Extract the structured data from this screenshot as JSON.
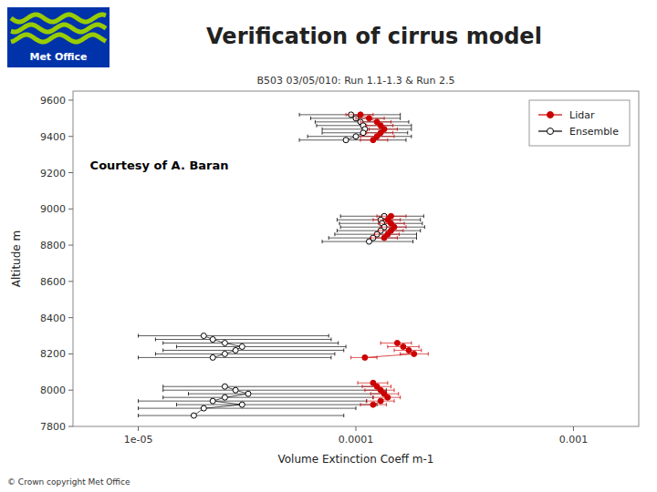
{
  "chart_data": {
    "type": "scatter",
    "title": "Verification of cirrus model",
    "subtitle": "B503 03/05/010: Run 1.1-1.3 & Run 2.5",
    "x_label": "Volume Extinction Coeff m-1",
    "y_label": "Altitude m",
    "annotations": [
      "Courtesy of A. Baran",
      "Met Office",
      "© Crown copyright  Met Office"
    ],
    "log": "x",
    "grid": false,
    "legend": "upper-right",
    "xlim": [
      5.011872336272725e-06,
      0.001995262314968879
    ],
    "xticks": [
      {
        "value": 1e-05,
        "label": "1e-05"
      },
      0.0001,
      0.001
    ],
    "ylim": [
      7800,
      9650
    ],
    "yticks": [
      7800,
      8000,
      8200,
      8400,
      8600,
      8800,
      9000,
      9200,
      9400,
      9600
    ],
    "series": [
      {
        "name": "Lidar",
        "color": "#cc0000",
        "marker": "circle",
        "line_style": "solid",
        "x": [
          0.000105,
          0.000115,
          0.000125,
          0.00013,
          0.000135,
          0.00013,
          0.000125,
          0.00012,
          null,
          0.000145,
          0.00014,
          0.000145,
          0.00015,
          0.000145,
          0.00014,
          0.000135,
          null,
          0.000155,
          0.000165,
          0.000175,
          0.000185,
          0.00011,
          null,
          0.00012,
          0.000125,
          0.00013,
          0.000135,
          0.00014,
          0.00013,
          0.00012
        ],
        "values": [
          9520,
          9500,
          9480,
          9460,
          9440,
          9420,
          9400,
          9380,
          null,
          8960,
          8940,
          8920,
          8900,
          8880,
          8860,
          8840,
          null,
          8260,
          8240,
          8220,
          8200,
          8180,
          null,
          8040,
          8020,
          8000,
          7980,
          7960,
          7940,
          7920
        ],
        "x_error_minus": [
          1.5e-05,
          1.5e-05,
          2e-05,
          1.8e-05,
          2e-05,
          1.8e-05,
          2e-05,
          1.5e-05,
          null,
          2e-05,
          2e-05,
          1.8e-05,
          2e-05,
          1.8e-05,
          1.8e-05,
          1.8e-05,
          null,
          2.5e-05,
          2.5e-05,
          2.5e-05,
          2.5e-05,
          1.5e-05,
          null,
          1.8e-05,
          1.8e-05,
          2e-05,
          1.8e-05,
          2e-05,
          1.8e-05,
          1.5e-05
        ],
        "x_error_plus": [
          1.5e-05,
          2e-05,
          2e-05,
          1.8e-05,
          2e-05,
          1.8e-05,
          2.5e-05,
          2e-05,
          null,
          2.5e-05,
          2e-05,
          2.2e-05,
          2e-05,
          2e-05,
          1.8e-05,
          2e-05,
          null,
          2.5e-05,
          3e-05,
          2.5e-05,
          3e-05,
          1.5e-05,
          null,
          2e-05,
          2e-05,
          2e-05,
          2.2e-05,
          2e-05,
          2e-05,
          1.8e-05
        ]
      },
      {
        "name": "Ensemble",
        "color": "#000000",
        "marker": "open-circle",
        "line_style": "solid",
        "x": [
          9.5e-05,
          0.0001,
          0.000105,
          0.000108,
          0.00011,
          0.000108,
          0.0001,
          9e-05,
          null,
          0.000135,
          0.00013,
          0.000132,
          0.000135,
          0.00013,
          0.000125,
          0.00012,
          0.000115,
          null,
          2e-05,
          2.2e-05,
          2.5e-05,
          3e-05,
          2.8e-05,
          2.5e-05,
          2.2e-05,
          null,
          2.5e-05,
          2.8e-05,
          3.2e-05,
          2.5e-05,
          2.2e-05,
          3e-05,
          2e-05,
          1.8e-05
        ],
        "values": [
          9520,
          9500,
          9480,
          9460,
          9440,
          9420,
          9400,
          9380,
          null,
          8960,
          8940,
          8920,
          8900,
          8880,
          8860,
          8840,
          8820,
          null,
          8300,
          8280,
          8260,
          8240,
          8220,
          8200,
          8180,
          null,
          8020,
          8000,
          7980,
          7960,
          7940,
          7920,
          7900,
          7860
        ],
        "x_error_minus": [
          4e-05,
          3.8e-05,
          4e-05,
          4.2e-05,
          4e-05,
          3.8e-05,
          4e-05,
          3.5e-05,
          null,
          5e-05,
          4.8e-05,
          4.8e-05,
          5e-05,
          4.8e-05,
          4.5e-05,
          4.5e-05,
          4.5e-05,
          null,
          1e-05,
          1e-05,
          1.2e-05,
          1.5e-05,
          1.5e-05,
          1.3e-05,
          1.2e-05,
          null,
          1.2e-05,
          1.5e-05,
          1.5e-05,
          1.2e-05,
          1.2e-05,
          1.5e-05,
          1e-05,
          8e-06
        ],
        "x_error_plus": [
          6.5e-05,
          6e-05,
          7e-05,
          7.2e-05,
          7e-05,
          6.5e-05,
          8e-05,
          8e-05,
          null,
          7e-05,
          6.8e-05,
          7e-05,
          7.2e-05,
          6.8e-05,
          6.5e-05,
          7e-05,
          6.8e-05,
          null,
          5.5e-05,
          5.5e-05,
          5.8e-05,
          6e-05,
          6e-05,
          5.5e-05,
          5.5e-05,
          null,
          0.0001,
          0.00011,
          0.0001,
          9.5e-05,
          9e-05,
          9.5e-05,
          8e-05,
          7e-05
        ]
      }
    ]
  }
}
